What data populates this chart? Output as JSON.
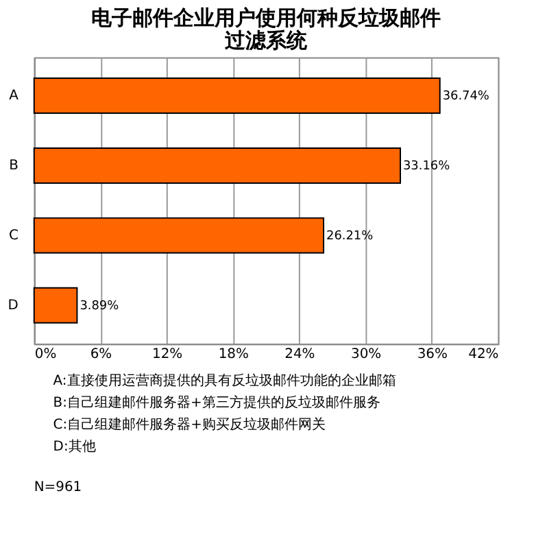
{
  "chart_data": {
    "type": "bar",
    "orientation": "horizontal",
    "title": "电子邮件企业用户使用何种反垃圾邮件过滤系统",
    "categories": [
      "A",
      "B",
      "C",
      "D"
    ],
    "values": [
      36.74,
      33.16,
      26.21,
      3.89
    ],
    "value_labels": [
      "36.74%",
      "33.16%",
      "26.21%",
      "3.89%"
    ],
    "color": "#ff6600",
    "xlim": [
      0,
      42
    ],
    "xticks": [
      {
        "value": 0,
        "label": "0%"
      },
      {
        "value": 6,
        "label": "6%"
      },
      {
        "value": 12,
        "label": "12%"
      },
      {
        "value": 18,
        "label": "18%"
      },
      {
        "value": 24,
        "label": "24%"
      },
      {
        "value": 30,
        "label": "30%"
      },
      {
        "value": 36,
        "label": "36%"
      },
      {
        "value": 42,
        "label": "42%"
      }
    ],
    "grid": "x",
    "annotations": [
      "A:直接使用运营商提供的具有反垃圾邮件功能的企业邮箱",
      "B:自己组建邮件服务器+第三方提供的反垃圾邮件服务",
      "C:自己组建邮件服务器+购买反垃圾邮件网关",
      "D:其他",
      "N=961"
    ]
  }
}
